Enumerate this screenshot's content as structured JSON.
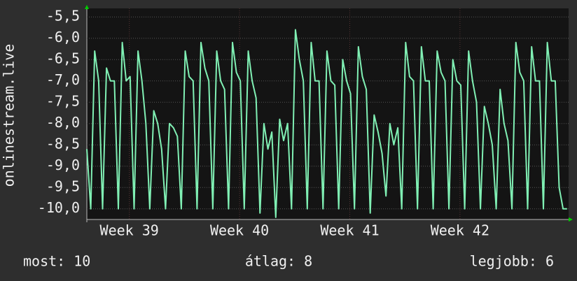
{
  "chart_data": {
    "type": "line",
    "y_axis_label": "onlinestream.live",
    "stats": {
      "current": "most: 10",
      "average": "átlag: 8",
      "best": "legjobb: 6"
    },
    "x": [
      0,
      0.25,
      0.5,
      0.75,
      1,
      1.25,
      1.5,
      1.75,
      2,
      2.25,
      2.5,
      2.75,
      3,
      3.25,
      3.5,
      3.75,
      4,
      4.25,
      4.5,
      4.75,
      5,
      5.25,
      5.5,
      5.75,
      6,
      6.25,
      6.5,
      6.75,
      7,
      7.25,
      7.5,
      7.75,
      8,
      8.25,
      8.5,
      8.75,
      9,
      9.25,
      9.5,
      9.75,
      10,
      10.25,
      10.5,
      10.75,
      11,
      11.25,
      11.5,
      11.75,
      12,
      12.25,
      12.5,
      12.75,
      13,
      13.25,
      13.5,
      13.75,
      14,
      14.25,
      14.5,
      14.75,
      15,
      15.25,
      15.5,
      15.75,
      16,
      16.25,
      16.5,
      16.75,
      17,
      17.25,
      17.5,
      17.75,
      18,
      18.25,
      18.5,
      18.75,
      19,
      19.25,
      19.5,
      19.75,
      20,
      20.25,
      20.5,
      20.75,
      21,
      21.25,
      21.5,
      21.75,
      22,
      22.25,
      22.5,
      22.75,
      23,
      23.25,
      23.5,
      23.75,
      24,
      24.25,
      24.5,
      24.75,
      25,
      25.25,
      25.5,
      25.75,
      26,
      26.25,
      26.5,
      26.75,
      27,
      27.25,
      27.5,
      27.75,
      28,
      28.25,
      28.5,
      28.75,
      29,
      29.25,
      29.5,
      29.75,
      30,
      30.25,
      30.5
    ],
    "series": [
      {
        "name": "onlinestream.live",
        "color": "#80f0b4",
        "values": [
          -8.6,
          -10.0,
          -6.3,
          -7.0,
          -10.0,
          -6.7,
          -7.0,
          -7.0,
          -10.0,
          -6.1,
          -7.0,
          -6.9,
          -10.0,
          -6.3,
          -7.0,
          -8.0,
          -10.0,
          -7.7,
          -8.0,
          -8.6,
          -10.0,
          -8.0,
          -8.1,
          -8.3,
          -10.0,
          -6.3,
          -6.9,
          -7.0,
          -10.0,
          -6.1,
          -6.7,
          -7.0,
          -10.0,
          -6.3,
          -7.0,
          -7.2,
          -10.0,
          -6.1,
          -6.8,
          -7.0,
          -10.0,
          -6.3,
          -7.0,
          -7.4,
          -10.1,
          -8.0,
          -8.6,
          -8.2,
          -10.2,
          -7.9,
          -8.4,
          -8.0,
          -10.0,
          -5.8,
          -6.5,
          -7.0,
          -10.0,
          -6.1,
          -7.0,
          -7.0,
          -10.0,
          -6.3,
          -7.0,
          -7.1,
          -10.0,
          -6.5,
          -7.0,
          -7.3,
          -10.0,
          -6.2,
          -6.9,
          -7.2,
          -10.1,
          -7.8,
          -8.2,
          -8.7,
          -9.7,
          -8.0,
          -8.5,
          -8.1,
          -10.0,
          -6.1,
          -6.9,
          -7.0,
          -10.0,
          -6.2,
          -7.0,
          -7.0,
          -10.0,
          -6.3,
          -6.8,
          -7.0,
          -10.0,
          -6.5,
          -7.0,
          -7.1,
          -10.0,
          -6.3,
          -7.0,
          -7.5,
          -10.0,
          -7.6,
          -8.0,
          -8.5,
          -10.0,
          -7.2,
          -8.0,
          -8.4,
          -10.0,
          -6.1,
          -6.8,
          -7.0,
          -10.0,
          -6.2,
          -7.0,
          -7.0,
          -10.0,
          -6.1,
          -7.0,
          -7.0,
          -9.5,
          -10.0,
          -10.0
        ]
      }
    ],
    "xlim": [
      0,
      30.6
    ],
    "xticks": [
      {
        "value": 2.7,
        "label": "Week 39"
      },
      {
        "value": 9.7,
        "label": "Week 40"
      },
      {
        "value": 16.7,
        "label": "Week 41"
      },
      {
        "value": 23.7,
        "label": "Week 42"
      }
    ],
    "ylim": [
      -10.25,
      -5.3
    ],
    "yticks": [
      {
        "value": -5.5,
        "label": "-5,5"
      },
      {
        "value": -6.0,
        "label": "-6,0"
      },
      {
        "value": -6.5,
        "label": "-6,5"
      },
      {
        "value": -7.0,
        "label": "-7,0"
      },
      {
        "value": -7.5,
        "label": "-7,5"
      },
      {
        "value": -8.0,
        "label": "-8,0"
      },
      {
        "value": -8.5,
        "label": "-8,5"
      },
      {
        "value": -9.0,
        "label": "-9,0"
      },
      {
        "value": -9.5,
        "label": "-9,5"
      },
      {
        "value": -10.0,
        "label": "-10,0"
      }
    ],
    "grid": true
  }
}
